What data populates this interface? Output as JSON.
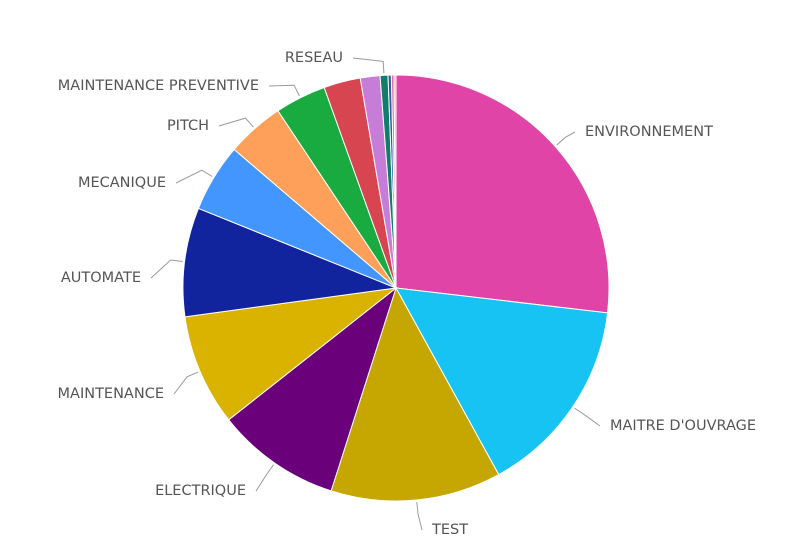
{
  "chart_data": {
    "type": "pie",
    "title": "",
    "series": [
      {
        "values": [
          {
            "label": "ENVIRONNEMENT",
            "value": 27.0,
            "color": "#E044A7"
          },
          {
            "label": "MAITRE D'OUVRAGE",
            "value": 15.2,
            "color": "#16C3F3"
          },
          {
            "label": "TEST",
            "value": 13.0,
            "color": "#C6A600"
          },
          {
            "label": "ELECTRIQUE",
            "value": 9.5,
            "color": "#6B007B"
          },
          {
            "label": "MAINTENANCE",
            "value": 8.5,
            "color": "#D9B300"
          },
          {
            "label": "AUTOMATE",
            "value": 8.3,
            "color": "#12239E"
          },
          {
            "label": "MECANIQUE",
            "value": 5.2,
            "color": "#4496FF"
          },
          {
            "label": "PITCH",
            "value": 4.4,
            "color": "#FFA05A"
          },
          {
            "label": "MAINTENANCE PREVENTIVE",
            "value": 3.9,
            "color": "#1AAB40"
          },
          {
            "label": "",
            "value": 2.8,
            "color": "#D64550"
          },
          {
            "label": "",
            "value": 1.5,
            "color": "#C77DD7"
          },
          {
            "label": "RESEAU",
            "value": 0.6,
            "color": "#117D6B"
          },
          {
            "label": "",
            "value": 0.25,
            "color": "#2E5BA8"
          },
          {
            "label": "",
            "value": 0.2,
            "color": "#E66C9C"
          },
          {
            "label": "",
            "value": 0.15,
            "color": "#F3A6A6"
          }
        ]
      }
    ],
    "legend": "none",
    "label_style": "outside-with-leader-lines"
  }
}
